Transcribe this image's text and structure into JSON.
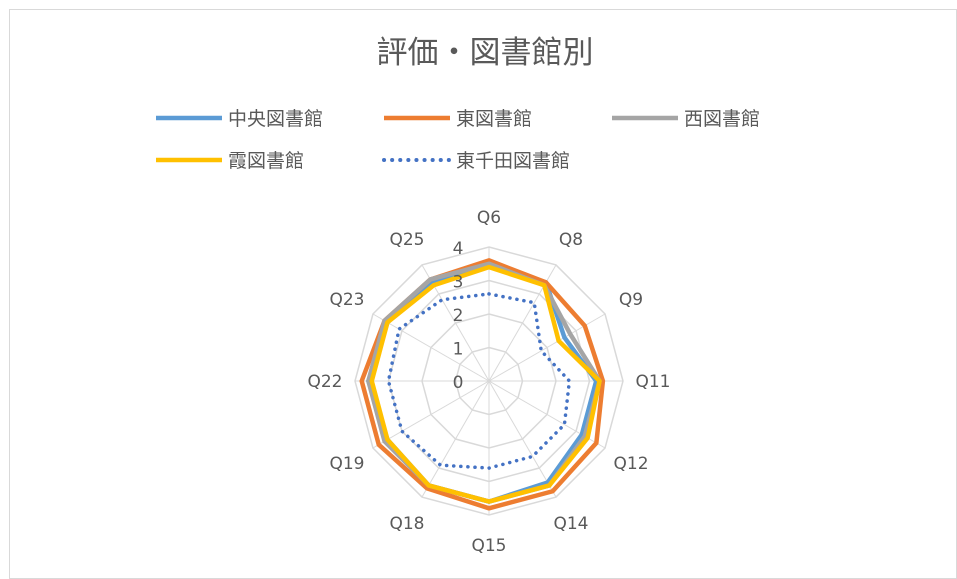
{
  "chart_data": {
    "type": "radar",
    "title": "評価・図書館別",
    "categories": [
      "Q6",
      "Q8",
      "Q9",
      "Q11",
      "Q12",
      "Q14",
      "Q15",
      "Q18",
      "Q19",
      "Q22",
      "Q23",
      "Q25"
    ],
    "rlim": [
      0,
      4
    ],
    "ticks": [
      0,
      1,
      2,
      3,
      4
    ],
    "grid": true,
    "legend_position": "top",
    "series": [
      {
        "name": "中央図書館",
        "color": "#5B9BD5",
        "style": "solid",
        "values": [
          3.5,
          3.4,
          2.6,
          3.2,
          3.2,
          3.5,
          3.6,
          3.6,
          3.5,
          3.6,
          3.5,
          3.4
        ]
      },
      {
        "name": "東図書館",
        "color": "#ED7D31",
        "style": "solid",
        "values": [
          3.6,
          3.4,
          3.3,
          3.4,
          3.7,
          3.8,
          3.8,
          3.7,
          3.8,
          3.8,
          3.6,
          3.5
        ]
      },
      {
        "name": "西図書館",
        "color": "#A5A5A5",
        "style": "solid",
        "values": [
          3.5,
          3.3,
          2.8,
          3.3,
          3.3,
          3.6,
          3.6,
          3.6,
          3.6,
          3.6,
          3.6,
          3.5
        ]
      },
      {
        "name": "霞図書館",
        "color": "#FFC000",
        "style": "solid",
        "values": [
          3.4,
          3.3,
          2.4,
          3.3,
          3.4,
          3.6,
          3.6,
          3.6,
          3.5,
          3.5,
          3.5,
          3.3
        ]
      },
      {
        "name": "東千田図書館",
        "color": "#4472C4",
        "style": "dotted",
        "values": [
          2.6,
          2.7,
          1.8,
          2.4,
          2.6,
          2.6,
          2.6,
          2.9,
          3.0,
          3.0,
          3.1,
          2.8
        ]
      }
    ]
  }
}
